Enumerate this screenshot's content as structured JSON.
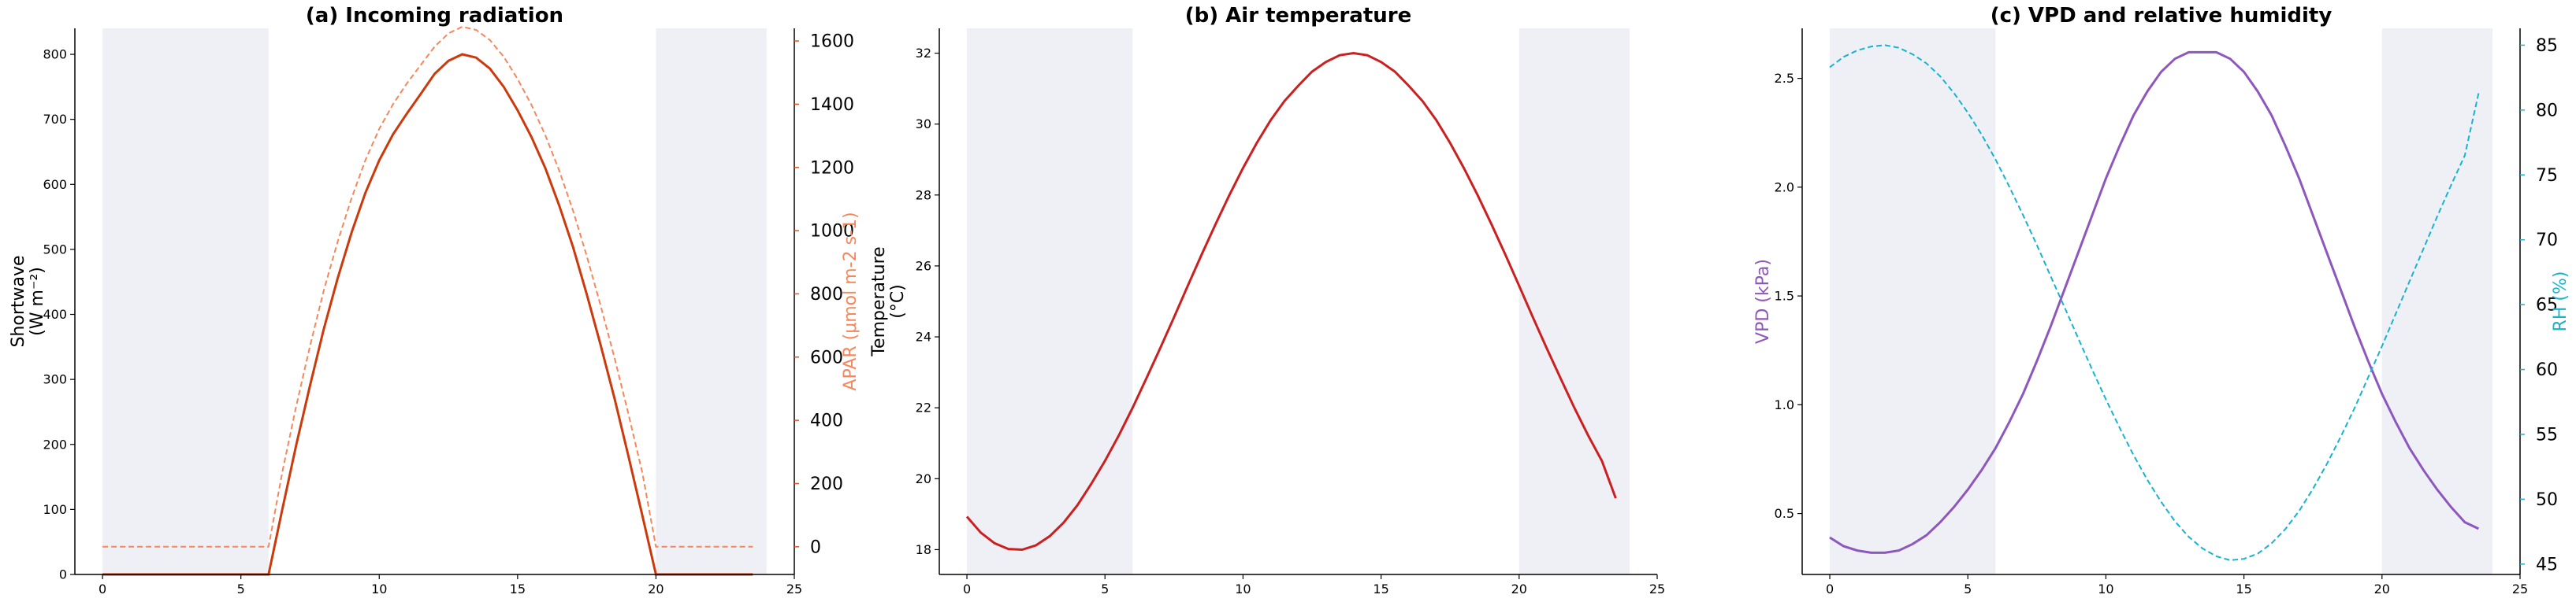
{
  "colors": {
    "night_shade": "#eef0f6",
    "shortwave": "#cc3a0b",
    "apar": "#f4885c",
    "apar_axis": "#e8501c",
    "temperature": "#cc1f1f",
    "vpd": "#8e57bd",
    "rh": "#17b3cf"
  },
  "chart_data": [
    {
      "type": "line",
      "title": "(a) Incoming radiation",
      "xlabel": "",
      "ylabel": "Shortwave\n(W m⁻²)",
      "y2label": "APAR (μmol m-2 s-1)",
      "xlim": [
        -1,
        25
      ],
      "ylim": [
        0,
        840
      ],
      "y2lim": [
        -87.6,
        1640
      ],
      "x_ticks": [
        0,
        5,
        10,
        15,
        20,
        25
      ],
      "y_ticks": [
        0,
        100,
        200,
        300,
        400,
        500,
        600,
        700,
        800
      ],
      "y2_ticks": [
        0,
        200,
        400,
        600,
        800,
        1000,
        1200,
        1400,
        1600
      ],
      "night_shading": [
        [
          0,
          6
        ],
        [
          20,
          24
        ]
      ],
      "series": [
        {
          "axis": "left",
          "style": "solid",
          "color_key": "shortwave",
          "x": [
            0,
            0.5,
            1,
            1.5,
            2,
            2.5,
            3,
            3.5,
            4,
            4.5,
            5,
            5.5,
            6,
            6.5,
            7,
            7.5,
            8,
            8.5,
            9,
            9.5,
            10,
            10.5,
            11,
            11.5,
            12,
            12.5,
            13,
            13.5,
            14,
            14.5,
            15,
            15.5,
            16,
            16.5,
            17,
            17.5,
            18,
            18.5,
            19,
            19.5,
            20,
            20.5,
            21,
            21.5,
            22,
            22.5,
            23,
            23.5
          ],
          "y": [
            0,
            0,
            0,
            0,
            0,
            0,
            0,
            0,
            0,
            0,
            0,
            0,
            0,
            101,
            199,
            291,
            378,
            456,
            526,
            587,
            637,
            677,
            709,
            739,
            770,
            790,
            800,
            795,
            778,
            750,
            714,
            673,
            625,
            568,
            504,
            431,
            353,
            271,
            183,
            92,
            0,
            0,
            0,
            0,
            0,
            0,
            0,
            0
          ]
        },
        {
          "axis": "right",
          "style": "dashed",
          "color_key": "apar",
          "x": [
            0,
            0.5,
            1,
            1.5,
            2,
            2.5,
            3,
            3.5,
            4,
            4.5,
            5,
            5.5,
            6,
            6.5,
            7,
            7.5,
            8,
            8.5,
            9,
            9.5,
            10,
            10.5,
            11,
            11.5,
            12,
            12.5,
            13,
            13.5,
            14,
            14.5,
            15,
            15.5,
            16,
            16.5,
            17,
            17.5,
            18,
            18.5,
            19,
            19.5,
            20,
            20.5,
            21,
            21.5,
            22,
            22.5,
            23,
            23.5
          ],
          "y": [
            0,
            0,
            0,
            0,
            0,
            0,
            0,
            0,
            0,
            0,
            0,
            0,
            0,
            238,
            445,
            636,
            812,
            966,
            1103,
            1223,
            1322,
            1400,
            1466,
            1524,
            1582,
            1624,
            1645,
            1635,
            1603,
            1550,
            1480,
            1398,
            1302,
            1191,
            1064,
            920,
            763,
            598,
            422,
            237,
            0,
            0,
            0,
            0,
            0,
            0,
            0,
            0
          ]
        }
      ]
    },
    {
      "type": "line",
      "title": "(b) Air temperature",
      "xlabel": "",
      "ylabel": "Temperature\n(°C)",
      "xlim": [
        -1,
        25
      ],
      "ylim": [
        17.3,
        32.7
      ],
      "x_ticks": [
        0,
        5,
        10,
        15,
        20,
        25
      ],
      "y_ticks": [
        18,
        20,
        22,
        24,
        26,
        28,
        30,
        32
      ],
      "night_shading": [
        [
          0,
          6
        ],
        [
          20,
          24
        ]
      ],
      "series": [
        {
          "axis": "left",
          "style": "solid",
          "color_key": "temperature",
          "x": [
            0,
            0.5,
            1,
            1.5,
            2,
            2.5,
            3,
            3.5,
            4,
            4.5,
            5,
            5.5,
            6,
            6.5,
            7,
            7.5,
            8,
            8.5,
            9,
            9.5,
            10,
            10.5,
            11,
            11.5,
            12,
            12.5,
            13,
            13.5,
            14,
            14.5,
            15,
            15.5,
            16,
            16.5,
            17,
            17.5,
            18,
            18.5,
            19,
            19.5,
            20,
            20.5,
            21,
            21.5,
            22,
            22.5,
            23,
            23.5
          ],
          "y": [
            18.93,
            18.48,
            18.18,
            18.02,
            18.0,
            18.12,
            18.38,
            18.76,
            19.25,
            19.85,
            20.5,
            21.22,
            22.0,
            22.83,
            23.68,
            24.55,
            25.44,
            26.32,
            27.17,
            27.99,
            28.76,
            29.47,
            30.11,
            30.65,
            31.08,
            31.48,
            31.75,
            31.94,
            32.0,
            31.94,
            31.75,
            31.48,
            31.08,
            30.65,
            30.11,
            29.47,
            28.76,
            27.99,
            27.17,
            26.32,
            25.44,
            24.55,
            23.68,
            22.83,
            22.0,
            21.22,
            20.5,
            19.45
          ]
        }
      ]
    },
    {
      "type": "line",
      "title": "(c) VPD and relative humidity",
      "xlabel": "",
      "ylabel": "VPD (kPa)",
      "y2label": "RH (%)",
      "xlim": [
        -1,
        25
      ],
      "ylim": [
        0.22,
        2.73
      ],
      "y2lim": [
        44.2,
        86.3
      ],
      "x_ticks": [
        0,
        5,
        10,
        15,
        20,
        25
      ],
      "y_ticks": [
        0.5,
        1.0,
        1.5,
        2.0,
        2.5
      ],
      "y2_ticks": [
        45,
        50,
        55,
        60,
        65,
        70,
        75,
        80,
        85
      ],
      "night_shading": [
        [
          0,
          6
        ],
        [
          20,
          24
        ]
      ],
      "series": [
        {
          "axis": "left",
          "style": "solid",
          "color_key": "vpd",
          "x": [
            0,
            0.5,
            1,
            1.5,
            2,
            2.5,
            3,
            3.5,
            4,
            4.5,
            5,
            5.5,
            6,
            6.5,
            7,
            7.5,
            8,
            8.5,
            9,
            9.5,
            10,
            10.5,
            11,
            11.5,
            12,
            12.5,
            13,
            13.5,
            14,
            14.5,
            15,
            15.5,
            16,
            16.5,
            17,
            17.5,
            18,
            18.5,
            19,
            19.5,
            20,
            20.5,
            21,
            21.5,
            22,
            22.5,
            23,
            23.5
          ],
          "y": [
            0.39,
            0.35,
            0.33,
            0.32,
            0.32,
            0.33,
            0.36,
            0.4,
            0.46,
            0.53,
            0.61,
            0.7,
            0.8,
            0.92,
            1.05,
            1.2,
            1.36,
            1.53,
            1.7,
            1.87,
            2.04,
            2.19,
            2.33,
            2.44,
            2.53,
            2.59,
            2.62,
            2.62,
            2.62,
            2.59,
            2.53,
            2.44,
            2.33,
            2.19,
            2.04,
            1.87,
            1.7,
            1.53,
            1.36,
            1.2,
            1.05,
            0.92,
            0.8,
            0.7,
            0.61,
            0.53,
            0.46,
            0.43
          ]
        },
        {
          "axis": "right",
          "style": "dashed",
          "color_key": "rh",
          "x": [
            0,
            0.5,
            1,
            1.5,
            2,
            2.5,
            3,
            3.5,
            4,
            4.5,
            5,
            5.5,
            6,
            6.5,
            7,
            7.5,
            8,
            8.5,
            9,
            9.5,
            10,
            10.5,
            11,
            11.5,
            12,
            12.5,
            13,
            13.5,
            14,
            14.5,
            15,
            15.5,
            16,
            16.5,
            17,
            17.5,
            18,
            18.5,
            19,
            19.5,
            20,
            20.5,
            21,
            21.5,
            22,
            22.5,
            23,
            23.5
          ],
          "y": [
            83.3,
            84.1,
            84.6,
            84.9,
            85.0,
            84.8,
            84.3,
            83.6,
            82.6,
            81.3,
            79.8,
            78.1,
            76.2,
            74.1,
            71.9,
            69.6,
            67.2,
            64.8,
            62.4,
            60.0,
            57.7,
            55.5,
            53.4,
            51.5,
            49.8,
            48.3,
            47.1,
            46.2,
            45.6,
            45.3,
            45.4,
            45.8,
            46.6,
            47.7,
            49.1,
            50.8,
            52.7,
            54.8,
            57.0,
            59.4,
            61.8,
            64.3,
            66.8,
            69.3,
            71.8,
            74.2,
            76.5,
            81.3
          ]
        }
      ]
    }
  ]
}
